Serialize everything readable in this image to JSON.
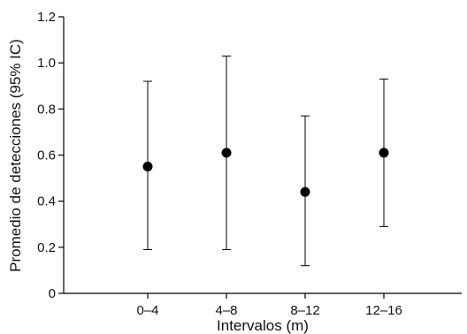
{
  "chart_data": {
    "type": "scatter",
    "categories": [
      "0–4",
      "4–8",
      "8–12",
      "12–16"
    ],
    "values": [
      0.55,
      0.61,
      0.44,
      0.61
    ],
    "ci_lower": [
      0.19,
      0.19,
      0.12,
      0.29
    ],
    "ci_upper": [
      0.92,
      1.03,
      0.77,
      0.93
    ],
    "xlabel": "Intervalos (m)",
    "ylabel": "Promedio de detecciones (95% IC)",
    "ylim": [
      0,
      1.2
    ],
    "yticks": [
      "0",
      "0.2",
      "0.4",
      "0.6",
      "0.8",
      "1.0",
      "1.2"
    ],
    "grid": false,
    "marker_color": "#000000"
  }
}
